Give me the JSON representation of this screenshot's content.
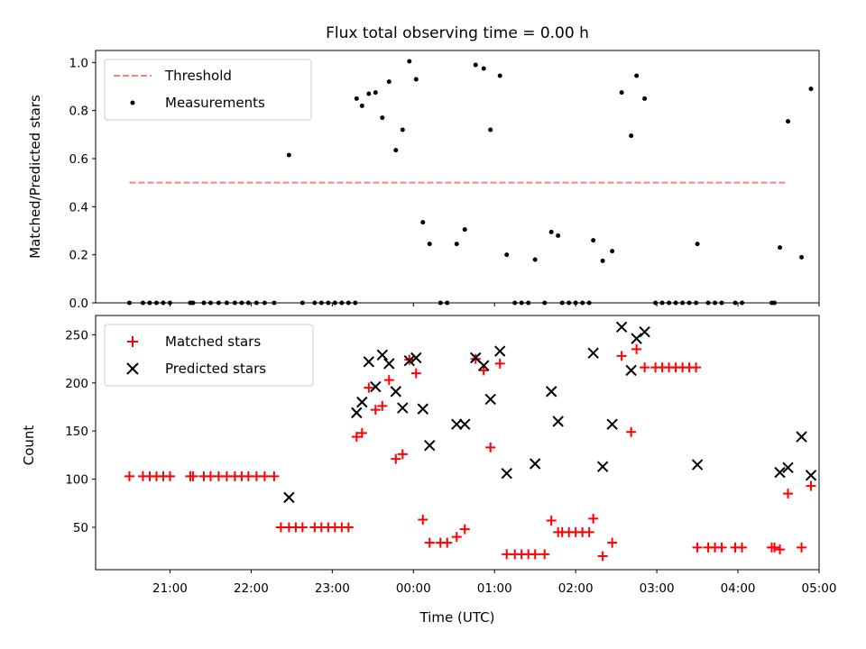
{
  "chart_data": [
    {
      "type": "scatter",
      "title": "Flux total observing time = 0.00 h",
      "xlabel": "",
      "ylabel": "Matched/Predicted stars",
      "xlim": [
        "2015-06-09T20:05",
        "2015-06-10T05:00"
      ],
      "ylim": [
        0,
        1.05
      ],
      "yticks": [
        0.0,
        0.2,
        0.4,
        0.6,
        0.8,
        1.0
      ],
      "ytick_labels": [
        "0.0",
        "0.2",
        "0.4",
        "0.6",
        "0.8",
        "1.0"
      ],
      "legend_position": "top-left",
      "series": [
        {
          "name": "Threshold",
          "kind": "dashed-line",
          "color": "#ff7f7f",
          "points": [
            [
              "20:30",
              0.5
            ],
            [
              "04:37",
              0.5
            ]
          ]
        },
        {
          "name": "Measurements",
          "kind": "dot",
          "color": "#000000",
          "points": [
            [
              "20:30",
              0
            ],
            [
              "20:40",
              0
            ],
            [
              "20:45",
              0
            ],
            [
              "20:50",
              0
            ],
            [
              "20:55",
              0
            ],
            [
              "21:00",
              0
            ],
            [
              "21:15",
              0
            ],
            [
              "21:17",
              0
            ],
            [
              "21:25",
              0
            ],
            [
              "21:30",
              0
            ],
            [
              "21:36",
              0
            ],
            [
              "21:42",
              0
            ],
            [
              "21:48",
              0
            ],
            [
              "21:53",
              0
            ],
            [
              "21:58",
              0
            ],
            [
              "22:04",
              0
            ],
            [
              "22:10",
              0
            ],
            [
              "22:17",
              0
            ],
            [
              "22:28",
              0.615
            ],
            [
              "22:38",
              0
            ],
            [
              "22:47",
              0
            ],
            [
              "22:52",
              0
            ],
            [
              "22:57",
              0
            ],
            [
              "23:02",
              0
            ],
            [
              "23:07",
              0
            ],
            [
              "23:12",
              0
            ],
            [
              "23:17",
              0
            ],
            [
              "23:18",
              0.85
            ],
            [
              "23:22",
              0.82
            ],
            [
              "23:27",
              0.87
            ],
            [
              "23:32",
              0.875
            ],
            [
              "23:37",
              0.77
            ],
            [
              "23:42",
              0.92
            ],
            [
              "23:47",
              0.635
            ],
            [
              "23:52",
              0.72
            ],
            [
              "23:57",
              1.005
            ],
            [
              "00:02",
              0.93
            ],
            [
              "00:07",
              0.335
            ],
            [
              "00:12",
              0.245
            ],
            [
              "00:20",
              0
            ],
            [
              "00:25",
              0
            ],
            [
              "00:32",
              0.245
            ],
            [
              "00:38",
              0.305
            ],
            [
              "00:46",
              0.99
            ],
            [
              "00:52",
              0.975
            ],
            [
              "00:57",
              0.72
            ],
            [
              "01:04",
              0.945
            ],
            [
              "01:09",
              0.2
            ],
            [
              "01:15",
              0
            ],
            [
              "01:20",
              0
            ],
            [
              "01:25",
              0
            ],
            [
              "01:30",
              0.18
            ],
            [
              "01:37",
              0
            ],
            [
              "01:42",
              0.295
            ],
            [
              "01:47",
              0.28
            ],
            [
              "01:50",
              0
            ],
            [
              "01:55",
              0
            ],
            [
              "02:00",
              0
            ],
            [
              "02:05",
              0
            ],
            [
              "02:10",
              0
            ],
            [
              "02:13",
              0.26
            ],
            [
              "02:20",
              0.175
            ],
            [
              "02:27",
              0.215
            ],
            [
              "02:34",
              0.875
            ],
            [
              "02:41",
              0.695
            ],
            [
              "02:45",
              0.945
            ],
            [
              "02:51",
              0.85
            ],
            [
              "02:59",
              0
            ],
            [
              "03:04",
              0
            ],
            [
              "03:09",
              0
            ],
            [
              "03:14",
              0
            ],
            [
              "03:19",
              0
            ],
            [
              "03:24",
              0
            ],
            [
              "03:29",
              0
            ],
            [
              "03:30",
              0.245
            ],
            [
              "03:38",
              0
            ],
            [
              "03:43",
              0
            ],
            [
              "03:48",
              0
            ],
            [
              "03:58",
              0
            ],
            [
              "04:03",
              0
            ],
            [
              "04:25",
              0
            ],
            [
              "04:27",
              0
            ],
            [
              "04:31",
              0.23
            ],
            [
              "04:37",
              0.755
            ],
            [
              "04:47",
              0.19
            ],
            [
              "04:54",
              0.89
            ]
          ]
        }
      ]
    },
    {
      "type": "scatter",
      "title": "",
      "xlabel": "Time (UTC)",
      "ylabel": "Count",
      "xlim": [
        "2015-06-09T20:05",
        "2015-06-10T05:00"
      ],
      "ylim": [
        6,
        270
      ],
      "yticks": [
        50,
        100,
        150,
        200,
        250
      ],
      "ytick_labels": [
        "50",
        "100",
        "150",
        "200",
        "250"
      ],
      "xticks": [
        "21:00",
        "22:00",
        "23:00",
        "00:00",
        "01:00",
        "02:00",
        "03:00",
        "04:00",
        "05:00"
      ],
      "xtick_labels": [
        "21:00",
        "22:00",
        "23:00",
        "00:00",
        "01:00",
        "02:00",
        "03:00",
        "04:00",
        "05:00"
      ],
      "legend_position": "top-left",
      "series": [
        {
          "name": "Matched stars",
          "kind": "plus",
          "color": "#ff0000",
          "points": [
            [
              "20:30",
              103
            ],
            [
              "20:40",
              103
            ],
            [
              "20:45",
              103
            ],
            [
              "20:50",
              103
            ],
            [
              "20:55",
              103
            ],
            [
              "21:00",
              103
            ],
            [
              "21:15",
              103
            ],
            [
              "21:17",
              103
            ],
            [
              "21:25",
              103
            ],
            [
              "21:30",
              103
            ],
            [
              "21:36",
              103
            ],
            [
              "21:42",
              103
            ],
            [
              "21:48",
              103
            ],
            [
              "21:53",
              103
            ],
            [
              "21:58",
              103
            ],
            [
              "22:04",
              103
            ],
            [
              "22:10",
              103
            ],
            [
              "22:17",
              103
            ],
            [
              "22:22",
              50
            ],
            [
              "22:28",
              50
            ],
            [
              "22:33",
              50
            ],
            [
              "22:38",
              50
            ],
            [
              "22:47",
              50
            ],
            [
              "22:52",
              50
            ],
            [
              "22:57",
              50
            ],
            [
              "23:02",
              50
            ],
            [
              "23:07",
              50
            ],
            [
              "23:12",
              50
            ],
            [
              "23:18",
              144
            ],
            [
              "23:22",
              148
            ],
            [
              "23:27",
              195
            ],
            [
              "23:32",
              172
            ],
            [
              "23:37",
              176
            ],
            [
              "23:42",
              203
            ],
            [
              "23:47",
              121
            ],
            [
              "23:52",
              126
            ],
            [
              "23:57",
              224
            ],
            [
              "00:02",
              210
            ],
            [
              "00:07",
              58
            ],
            [
              "00:12",
              34
            ],
            [
              "00:20",
              34
            ],
            [
              "00:25",
              34
            ],
            [
              "00:32",
              40
            ],
            [
              "00:38",
              48
            ],
            [
              "00:46",
              225
            ],
            [
              "00:52",
              213
            ],
            [
              "00:57",
              133
            ],
            [
              "01:04",
              220
            ],
            [
              "01:09",
              22
            ],
            [
              "01:15",
              22
            ],
            [
              "01:20",
              22
            ],
            [
              "01:25",
              22
            ],
            [
              "01:30",
              22
            ],
            [
              "01:37",
              22
            ],
            [
              "01:42",
              57
            ],
            [
              "01:47",
              45
            ],
            [
              "01:50",
              45
            ],
            [
              "01:55",
              45
            ],
            [
              "02:00",
              45
            ],
            [
              "02:05",
              45
            ],
            [
              "02:10",
              45
            ],
            [
              "02:13",
              59
            ],
            [
              "02:20",
              20
            ],
            [
              "02:27",
              34
            ],
            [
              "02:34",
              228
            ],
            [
              "02:41",
              149
            ],
            [
              "02:45",
              235
            ],
            [
              "02:51",
              216
            ],
            [
              "02:59",
              216
            ],
            [
              "03:04",
              216
            ],
            [
              "03:09",
              216
            ],
            [
              "03:14",
              216
            ],
            [
              "03:19",
              216
            ],
            [
              "03:24",
              216
            ],
            [
              "03:29",
              216
            ],
            [
              "03:30",
              29
            ],
            [
              "03:38",
              29
            ],
            [
              "03:43",
              29
            ],
            [
              "03:48",
              29
            ],
            [
              "03:58",
              29
            ],
            [
              "04:03",
              29
            ],
            [
              "04:25",
              29
            ],
            [
              "04:27",
              29
            ],
            [
              "04:31",
              27
            ],
            [
              "04:37",
              85
            ],
            [
              "04:47",
              29
            ],
            [
              "04:54",
              93
            ]
          ]
        },
        {
          "name": "Predicted stars",
          "kind": "x",
          "color": "#000000",
          "points": [
            [
              "22:28",
              81
            ],
            [
              "23:18",
              169
            ],
            [
              "23:22",
              180
            ],
            [
              "23:27",
              222
            ],
            [
              "23:32",
              196
            ],
            [
              "23:37",
              229
            ],
            [
              "23:42",
              220
            ],
            [
              "23:47",
              191
            ],
            [
              "23:52",
              174
            ],
            [
              "23:57",
              223
            ],
            [
              "00:02",
              226
            ],
            [
              "00:07",
              173
            ],
            [
              "00:12",
              135
            ],
            [
              "00:32",
              157
            ],
            [
              "00:38",
              157
            ],
            [
              "00:46",
              226
            ],
            [
              "00:52",
              218
            ],
            [
              "00:57",
              183
            ],
            [
              "01:04",
              233
            ],
            [
              "01:09",
              106
            ],
            [
              "01:30",
              116
            ],
            [
              "01:42",
              191
            ],
            [
              "01:47",
              160
            ],
            [
              "02:13",
              231
            ],
            [
              "02:20",
              113
            ],
            [
              "02:27",
              157
            ],
            [
              "02:34",
              258
            ],
            [
              "02:41",
              213
            ],
            [
              "02:45",
              246
            ],
            [
              "02:51",
              253
            ],
            [
              "03:30",
              115
            ],
            [
              "04:31",
              107
            ],
            [
              "04:37",
              112
            ],
            [
              "04:47",
              144
            ],
            [
              "04:54",
              104
            ]
          ]
        }
      ]
    }
  ]
}
